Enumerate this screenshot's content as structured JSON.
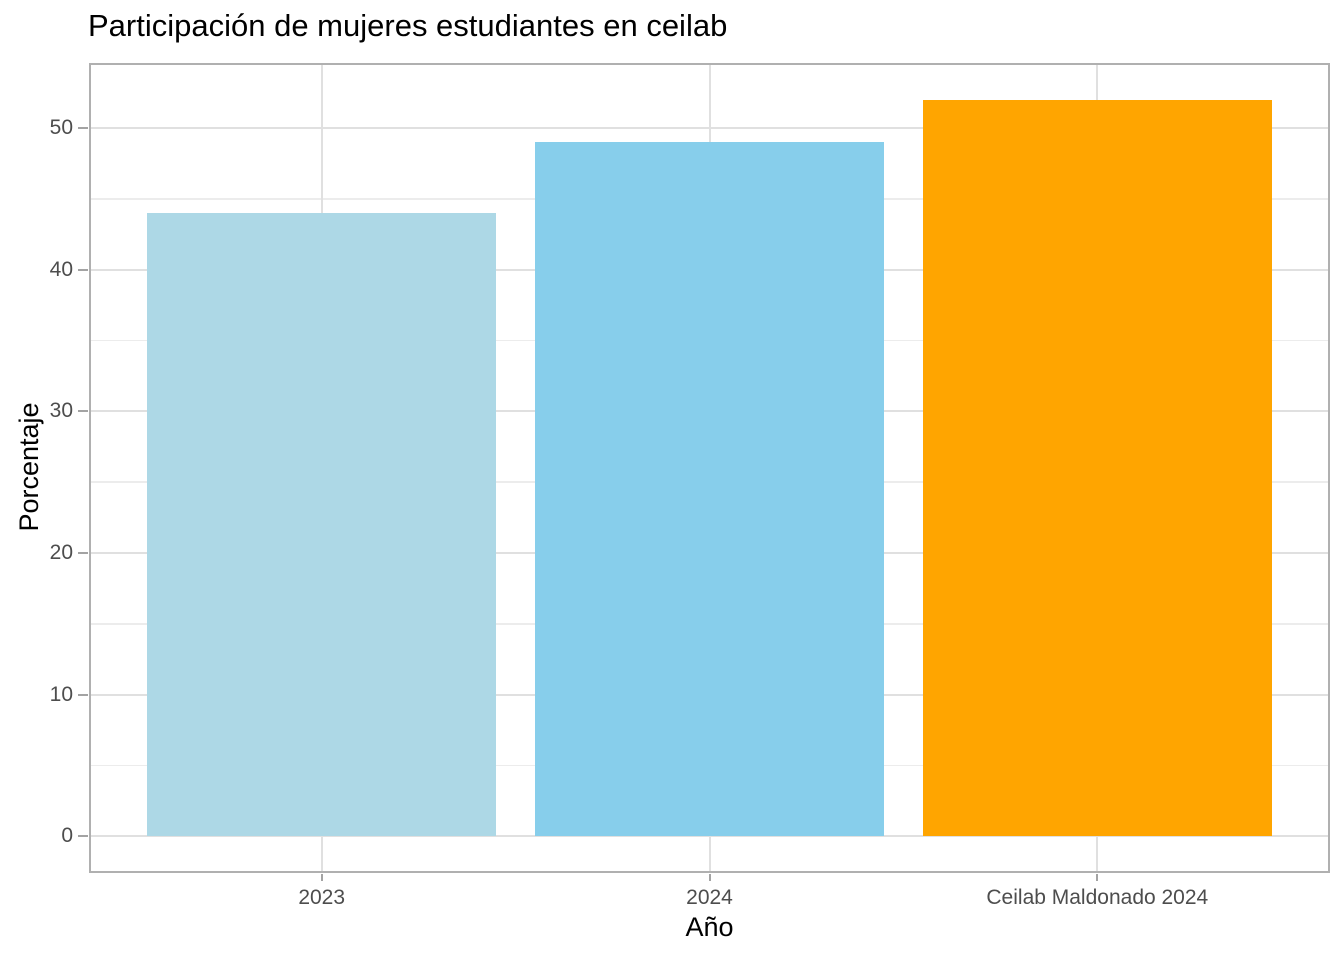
{
  "chart_data": {
    "type": "bar",
    "title": "Participación de mujeres estudiantes en ceilab",
    "xlabel": "Año",
    "ylabel": "Porcentaje",
    "categories": [
      "2023",
      "2024",
      "Ceilab Maldonado 2024"
    ],
    "values": [
      44,
      49,
      52
    ],
    "bar_colors": [
      "#ADD8E6",
      "#87CEEB",
      "#FFA500"
    ],
    "ylim": [
      -2.6,
      54.6
    ],
    "yticks_major": [
      0,
      10,
      20,
      30,
      40,
      50
    ],
    "yticks_minor": [
      5,
      15,
      25,
      35,
      45
    ],
    "grid": "horizontal major+minor, vertical major at category centers",
    "legend": "none",
    "panel_background": "#FFFFFF",
    "tick_label_color": "#4D4D4D"
  }
}
